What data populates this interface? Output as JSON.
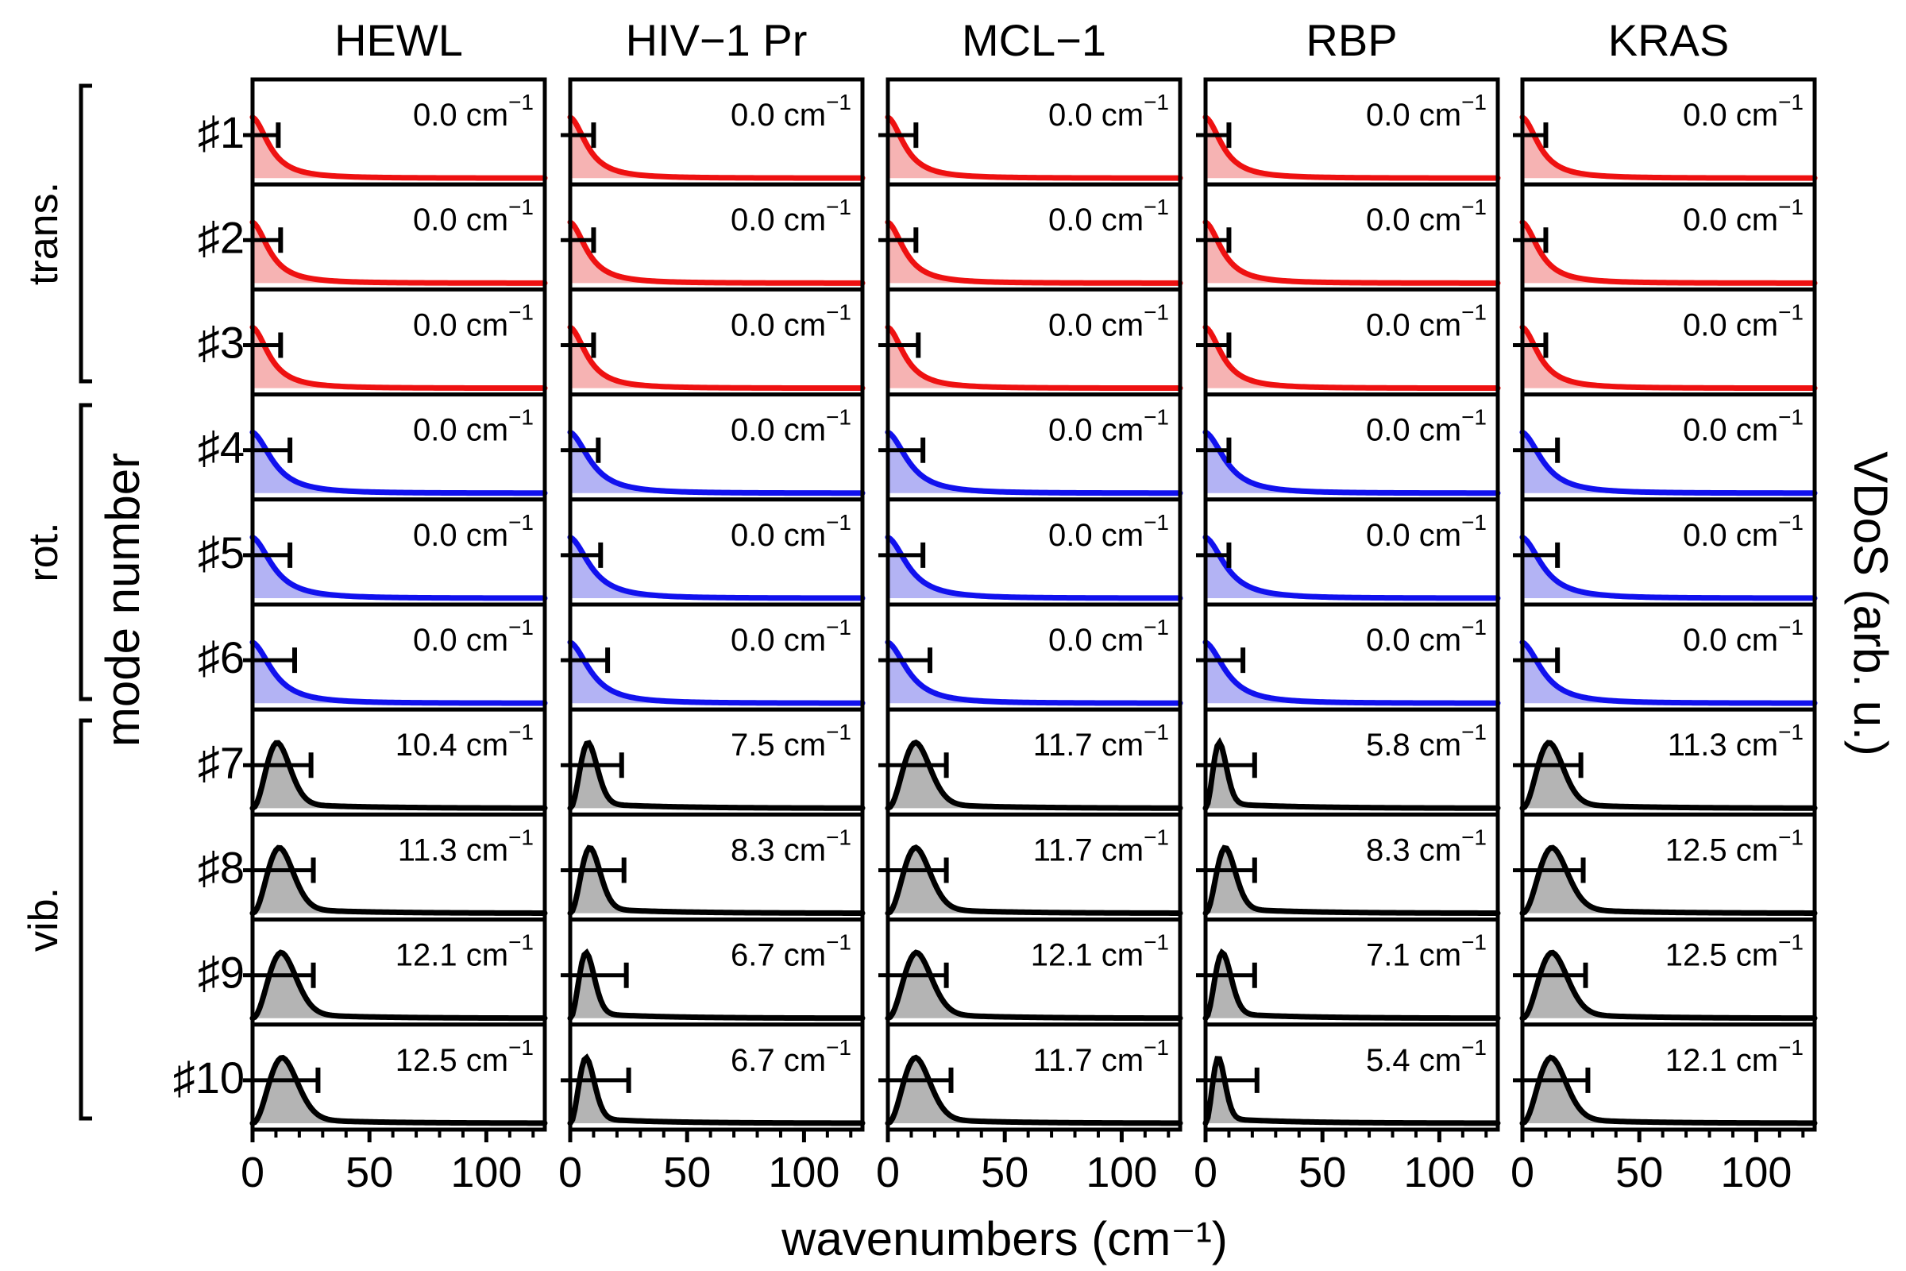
{
  "chart_data": {
    "type": "area",
    "title": "",
    "xlabel": "wavenumbers (cm⁻¹)",
    "ylabel_left": "mode number",
    "ylabel_right": "VDoS (arb. u.)",
    "xlim": [
      0,
      125
    ],
    "xticks": [
      0,
      50,
      100
    ],
    "xtick_labels": [
      "0",
      "50",
      "100"
    ],
    "unit": "cm⁻¹",
    "proteins": [
      "HEWL",
      "HIV−1 Pr",
      "MCL−1",
      "RBP",
      "KRAS"
    ],
    "modes": [
      "♯1",
      "♯2",
      "♯3",
      "♯4",
      "♯5",
      "♯6",
      "♯7",
      "♯8",
      "♯9",
      "♯10"
    ],
    "groups": [
      {
        "name": "trans.",
        "modes": [
          1,
          2,
          3
        ],
        "color": "#ee1111",
        "fill": "#f6b3b3"
      },
      {
        "name": "rot.",
        "modes": [
          4,
          5,
          6
        ],
        "color": "#1111ee",
        "fill": "#b3b3f4"
      },
      {
        "name": "vib.",
        "modes": [
          7,
          8,
          9,
          10
        ],
        "color": "#000000",
        "fill": "#b4b4b4"
      }
    ],
    "peak_frequencies": [
      [
        0.0,
        0.0,
        0.0,
        0.0,
        0.0
      ],
      [
        0.0,
        0.0,
        0.0,
        0.0,
        0.0
      ],
      [
        0.0,
        0.0,
        0.0,
        0.0,
        0.0
      ],
      [
        0.0,
        0.0,
        0.0,
        0.0,
        0.0
      ],
      [
        0.0,
        0.0,
        0.0,
        0.0,
        0.0
      ],
      [
        0.0,
        0.0,
        0.0,
        0.0,
        0.0
      ],
      [
        10.4,
        7.5,
        11.7,
        5.8,
        11.3
      ],
      [
        11.3,
        8.3,
        11.7,
        8.3,
        12.5
      ],
      [
        12.1,
        6.7,
        12.1,
        7.1,
        12.5
      ],
      [
        12.5,
        6.7,
        11.7,
        5.4,
        12.1
      ]
    ],
    "peak_labels": [
      [
        "0.0 cm",
        "0.0 cm",
        "0.0 cm",
        "0.0 cm",
        "0.0 cm"
      ],
      [
        "0.0 cm",
        "0.0 cm",
        "0.0 cm",
        "0.0 cm",
        "0.0 cm"
      ],
      [
        "0.0 cm",
        "0.0 cm",
        "0.0 cm",
        "0.0 cm",
        "0.0 cm"
      ],
      [
        "0.0 cm",
        "0.0 cm",
        "0.0 cm",
        "0.0 cm",
        "0.0 cm"
      ],
      [
        "0.0 cm",
        "0.0 cm",
        "0.0 cm",
        "0.0 cm",
        "0.0 cm"
      ],
      [
        "0.0 cm",
        "0.0 cm",
        "0.0 cm",
        "0.0 cm",
        "0.0 cm"
      ],
      [
        "10.4 cm",
        "7.5 cm",
        "11.7 cm",
        "5.8 cm",
        "11.3 cm"
      ],
      [
        "11.3 cm",
        "8.3 cm",
        "11.7 cm",
        "8.3 cm",
        "12.5 cm"
      ],
      [
        "12.1 cm",
        "6.7 cm",
        "12.1 cm",
        "7.1 cm",
        "12.5 cm"
      ],
      [
        "12.5 cm",
        "6.7 cm",
        "11.7 cm",
        "5.4 cm",
        "12.1 cm"
      ]
    ],
    "unit_superscript": "−1",
    "error_bar_ends": [
      [
        11,
        10,
        12,
        10,
        10
      ],
      [
        12,
        10,
        12,
        10,
        10
      ],
      [
        12,
        10,
        13,
        10,
        10
      ],
      [
        16,
        12,
        15,
        10,
        15
      ],
      [
        16,
        13,
        15,
        10,
        15
      ],
      [
        18,
        16,
        18,
        16,
        15
      ],
      [
        25,
        22,
        25,
        21,
        25
      ],
      [
        26,
        23,
        25,
        21,
        26
      ],
      [
        26,
        24,
        25,
        21,
        27
      ],
      [
        28,
        25,
        27,
        22,
        28
      ]
    ]
  }
}
